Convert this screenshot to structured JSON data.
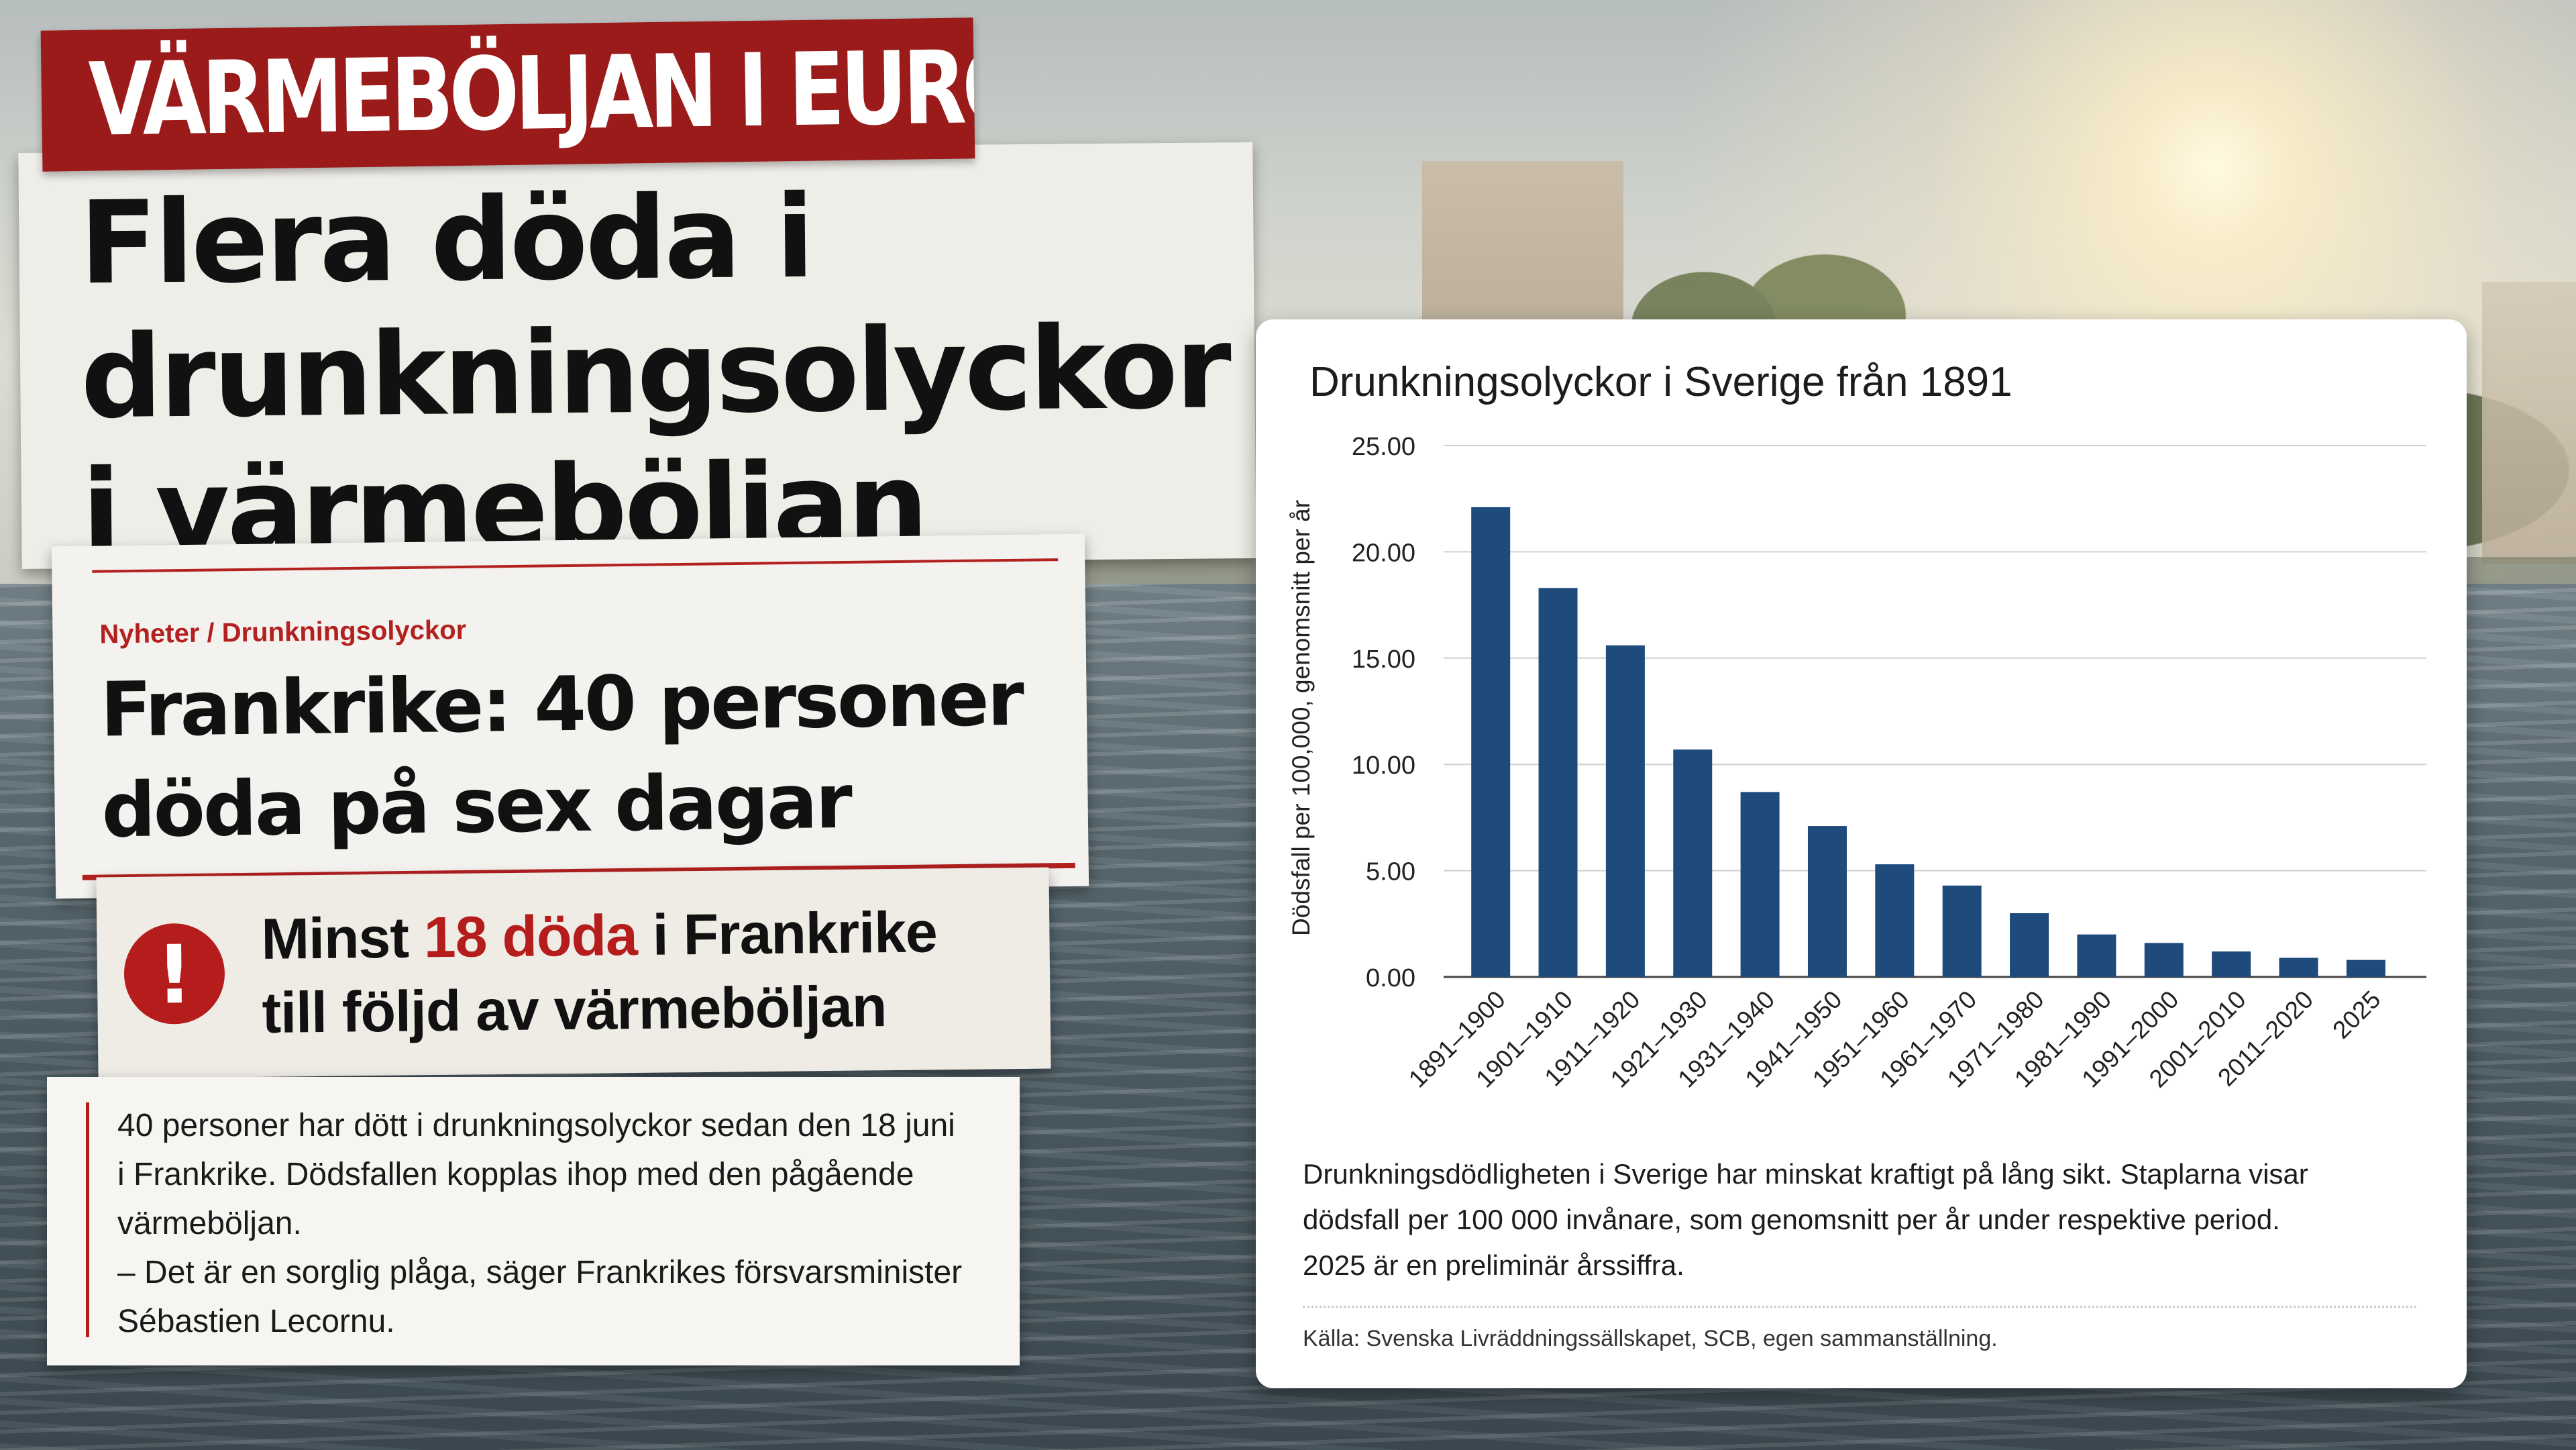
{
  "tag": "VÄRMEBÖLJAN I EUROPA",
  "headline": [
    "Flera döda i",
    "drunkningsolyckor",
    "i värmeböljan"
  ],
  "news": {
    "breadcrumb": "Nyheter / Drunkningsolyckor",
    "title": [
      "Frankrike: 40 personer",
      "döda på sex dagar"
    ]
  },
  "alert": {
    "icon": "exclamation-icon",
    "icon_glyph": "!",
    "line1_pre": "Minst ",
    "line1_highlight": "18 döda",
    "line1_post": " i Frankrike",
    "line2": "till följd av värmeböljan"
  },
  "body": [
    "40 personer har dött i drunkningsolyckor sedan den 18 juni",
    "i Frankrike. Dödsfallen kopplas ihop med den pågående",
    "värmeböljan.",
    "– Det är en sorglig plåga, säger Frankrikes försvarsminister",
    "Sébastien Lecornu."
  ],
  "caption": [
    "Drunkningsdödligheten i Sverige har minskat kraftigt på lång sikt. Staplarna visar",
    "dödsfall per 100 000 invånare, som genomsnitt per år under respektive period.",
    "2025 är en preliminär årssiffra."
  ],
  "source": "Källa: Svenska Livräddningssällskapet, SCB, egen sammanställning.",
  "colors": {
    "accent": "#b51d1d",
    "bar": "#1e4a7c"
  },
  "chart_data": {
    "type": "bar",
    "title": "Drunkningsolyckor i Sverige från 1891",
    "ylabel": "Dödsfall per 100,000, genomsnitt per år",
    "xlabel": "",
    "categories": [
      "1891–1900",
      "1901–1910",
      "1911–1920",
      "1921–1930",
      "1931–1940",
      "1941–1950",
      "1951–1960",
      "1961–1970",
      "1971–1980",
      "1981–1990",
      "1991–2000",
      "2001–2010",
      "2011–2020",
      "2025"
    ],
    "values": [
      22.1,
      18.3,
      15.6,
      10.7,
      8.7,
      7.1,
      5.3,
      4.3,
      3.0,
      2.0,
      1.6,
      1.2,
      0.9,
      0.8
    ],
    "ylim": [
      0,
      25
    ],
    "yticks": [
      "0.00",
      "5.00",
      "10.00",
      "15.00",
      "20.00",
      "25.00"
    ],
    "grid": true
  }
}
